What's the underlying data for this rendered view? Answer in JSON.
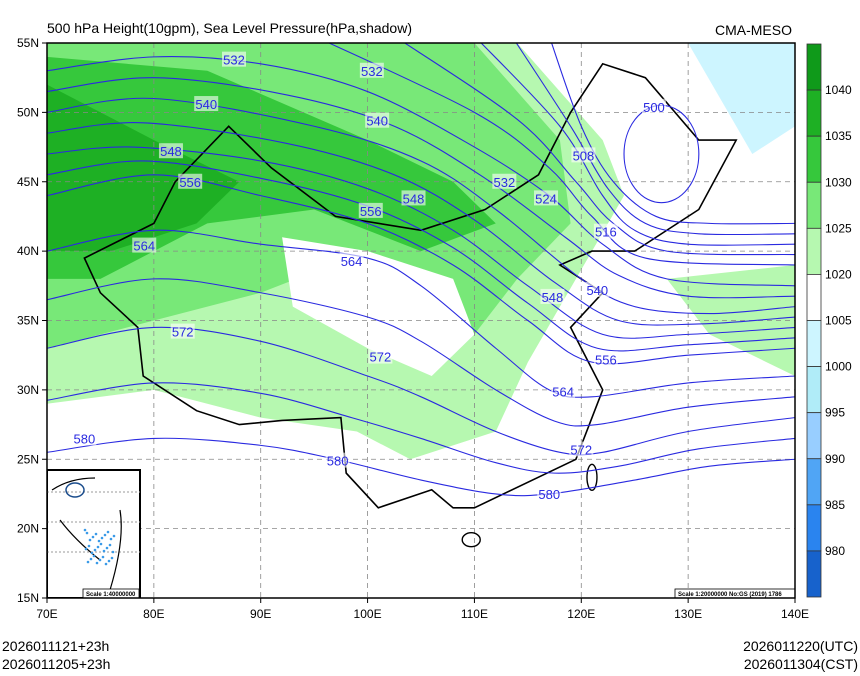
{
  "header": {
    "title": "500 hPa Height(10gpm), Sea Level Pressure(hPa,shadow)",
    "source": "CMA-MESO"
  },
  "footer": {
    "init_left": "2026011121+23h",
    "init_left_cst": "2026011205+23h",
    "valid_utc": "2026011220(UTC)",
    "valid_cst": "2026011304(CST)"
  },
  "map": {
    "lon_range": [
      70,
      140
    ],
    "lat_range": [
      15,
      55
    ],
    "lon_ticks": [
      "70E",
      "80E",
      "90E",
      "100E",
      "110E",
      "120E",
      "130E",
      "140E"
    ],
    "lat_ticks": [
      "55N",
      "50N",
      "45N",
      "40N",
      "35N",
      "30N",
      "25N",
      "20N",
      "15N"
    ],
    "scale_main": "Scale 1:20000000 No:GS (2019) 1786",
    "scale_inset": "Scale 1:40000000",
    "contour_color": "#2a2ae0",
    "contours": [
      {
        "value": "580",
        "pts": [
          [
            70,
            25.5
          ],
          [
            80,
            26.5
          ],
          [
            90,
            26
          ],
          [
            97,
            25
          ],
          [
            105,
            23.5
          ],
          [
            112,
            22.5
          ],
          [
            117,
            22.5
          ],
          [
            125,
            23.5
          ],
          [
            132,
            24.5
          ],
          [
            140,
            25
          ]
        ]
      },
      {
        "value": "572",
        "pts": [
          [
            70,
            33
          ],
          [
            80,
            34.5
          ],
          [
            90,
            33.5
          ],
          [
            100,
            31
          ],
          [
            105,
            29.5
          ],
          [
            112,
            27
          ],
          [
            118,
            25.5
          ],
          [
            122,
            25.5
          ],
          [
            130,
            27
          ],
          [
            140,
            28
          ]
        ]
      },
      {
        "value": "564",
        "pts": [
          [
            70,
            40
          ],
          [
            80,
            41.5
          ],
          [
            90,
            40.5
          ],
          [
            100,
            39.5
          ],
          [
            105,
            37.5
          ],
          [
            112,
            33
          ],
          [
            117,
            30
          ],
          [
            121,
            29.5
          ],
          [
            130,
            30.5
          ],
          [
            140,
            31
          ]
        ]
      },
      {
        "value": "556",
        "pts": [
          [
            70,
            44
          ],
          [
            80,
            45.5
          ],
          [
            90,
            44
          ],
          [
            100,
            42
          ],
          [
            108,
            39
          ],
          [
            115,
            35
          ],
          [
            121,
            32
          ],
          [
            130,
            32.5
          ],
          [
            140,
            33
          ]
        ]
      },
      {
        "value": "548",
        "pts": [
          [
            70,
            47
          ],
          [
            78,
            47.5
          ],
          [
            90,
            46.5
          ],
          [
            100,
            44.5
          ],
          [
            108,
            41.5
          ],
          [
            115,
            37.5
          ],
          [
            122,
            34
          ],
          [
            130,
            34
          ],
          [
            140,
            34.5
          ]
        ]
      },
      {
        "value": "540",
        "pts": [
          [
            70,
            50
          ],
          [
            80,
            51
          ],
          [
            95,
            49
          ],
          [
            105,
            46.5
          ],
          [
            112,
            43
          ],
          [
            120,
            38
          ],
          [
            125,
            36
          ],
          [
            132,
            35.5
          ],
          [
            140,
            36
          ]
        ]
      },
      {
        "value": "532",
        "pts": [
          [
            70,
            53
          ],
          [
            80,
            54
          ],
          [
            90,
            53.5
          ],
          [
            100,
            51.5
          ],
          [
            110,
            47.5
          ],
          [
            117,
            44
          ],
          [
            122,
            40.5
          ],
          [
            128,
            38
          ],
          [
            140,
            37.5
          ]
        ]
      },
      {
        "value": "524",
        "pts": [
          [
            95,
            55.5
          ],
          [
            110,
            50
          ],
          [
            117,
            46
          ],
          [
            121,
            42.5
          ],
          [
            126,
            39.5
          ],
          [
            140,
            39
          ]
        ]
      },
      {
        "value": "516",
        "pts": [
          [
            110,
            55.5
          ],
          [
            118,
            49
          ],
          [
            122,
            44
          ],
          [
            125,
            41.5
          ],
          [
            130,
            40.5
          ],
          [
            140,
            40.5
          ]
        ]
      },
      {
        "value": "508",
        "pts": [
          [
            117,
            55.5
          ],
          [
            120,
            49
          ],
          [
            123,
            45
          ],
          [
            127,
            42.5
          ],
          [
            132,
            42
          ],
          [
            140,
            42
          ]
        ]
      }
    ],
    "low_500": {
      "value": "500",
      "center": [
        127.5,
        47
      ],
      "rx": 3.5,
      "ry": 3.5
    },
    "labels": [
      {
        "v": "532",
        "lon": 87.5,
        "lat": 53.8
      },
      {
        "v": "532",
        "lon": 100.4,
        "lat": 53
      },
      {
        "v": "540",
        "lon": 84.9,
        "lat": 50.6
      },
      {
        "v": "540",
        "lon": 100.9,
        "lat": 49.4
      },
      {
        "v": "548",
        "lon": 81.6,
        "lat": 47.2
      },
      {
        "v": "548",
        "lon": 104.3,
        "lat": 43.8
      },
      {
        "v": "556",
        "lon": 83.4,
        "lat": 45
      },
      {
        "v": "556",
        "lon": 100.3,
        "lat": 42.9
      },
      {
        "v": "564",
        "lon": 79.1,
        "lat": 40.4
      },
      {
        "v": "564",
        "lon": 98.5,
        "lat": 39.3
      },
      {
        "v": "572",
        "lon": 82.7,
        "lat": 34.2
      },
      {
        "v": "572",
        "lon": 101.2,
        "lat": 32.4
      },
      {
        "v": "580",
        "lon": 73.5,
        "lat": 26.5
      },
      {
        "v": "580",
        "lon": 97.2,
        "lat": 24.9
      },
      {
        "v": "580",
        "lon": 117,
        "lat": 22.5
      },
      {
        "v": "532",
        "lon": 112.8,
        "lat": 45
      },
      {
        "v": "524",
        "lon": 116.7,
        "lat": 43.8
      },
      {
        "v": "516",
        "lon": 122.3,
        "lat": 41.4
      },
      {
        "v": "508",
        "lon": 120.2,
        "lat": 46.9
      },
      {
        "v": "500",
        "lon": 126.8,
        "lat": 50.4
      },
      {
        "v": "540",
        "lon": 121.5,
        "lat": 37.2
      },
      {
        "v": "548",
        "lon": 117.3,
        "lat": 36.7
      },
      {
        "v": "556",
        "lon": 122.3,
        "lat": 32.2
      },
      {
        "v": "564",
        "lon": 118.3,
        "lat": 29.9
      },
      {
        "v": "572",
        "lon": 120,
        "lat": 25.7
      }
    ]
  },
  "colorbar": {
    "colors": [
      "#0f9a1a",
      "#1eb024",
      "#36c83c",
      "#78e878",
      "#b6f8b0",
      "#ffffff",
      "#cdf5ff",
      "#b0ecf8",
      "#98ceff",
      "#50a5f5",
      "#2a84ef",
      "#1762cc"
    ],
    "labels": [
      "1040",
      "1035",
      "1030",
      "1025",
      "1020",
      "1005",
      "1000",
      "995",
      "990",
      "985",
      "980"
    ]
  }
}
